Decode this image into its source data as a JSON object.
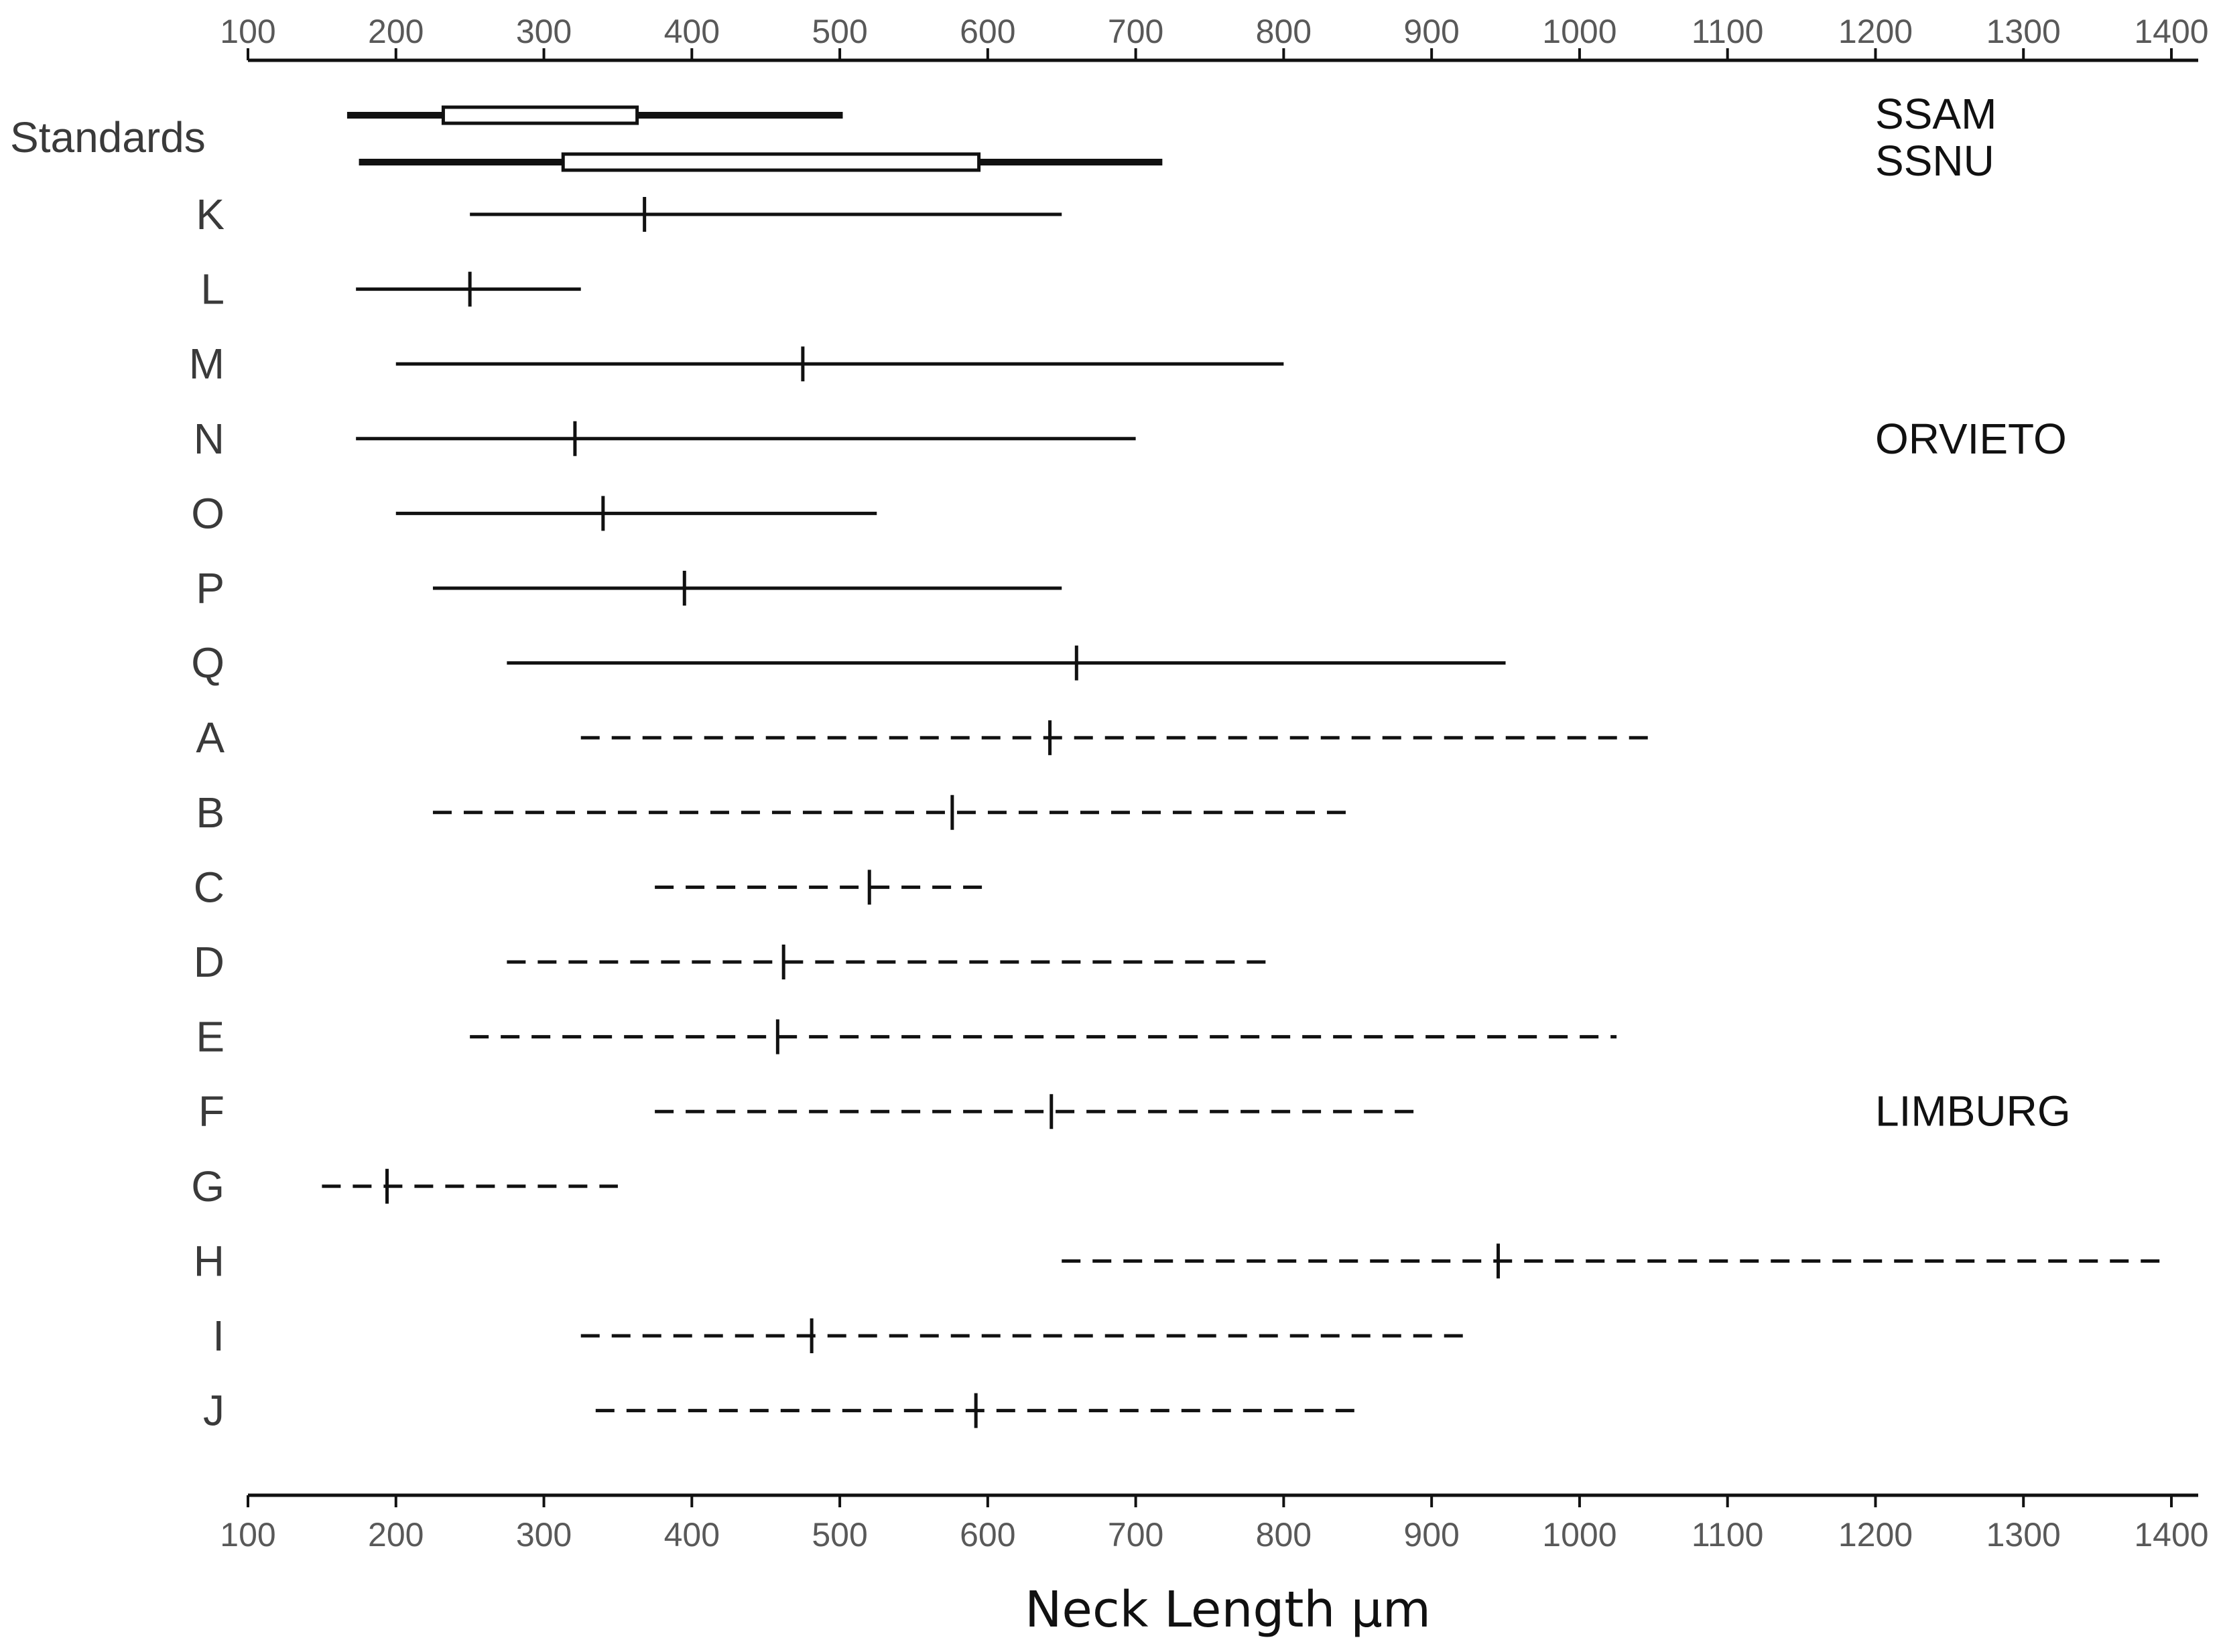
{
  "chart_data": {
    "type": "range",
    "xlabel": "Neck Length μm",
    "xlim": [
      100,
      1400
    ],
    "xticks": [
      100,
      200,
      300,
      400,
      500,
      600,
      700,
      800,
      900,
      1000,
      1100,
      1200,
      1300,
      1400
    ],
    "standards_label": "Standards",
    "standards": [
      {
        "name": "SSAM",
        "min": 167,
        "q1": 232,
        "q3": 363,
        "max": 502
      },
      {
        "name": "SSNU",
        "min": 175,
        "q1": 313,
        "q3": 594,
        "max": 718
      }
    ],
    "groups": [
      {
        "name": "ORVIETO",
        "line_style": "solid",
        "rows": [
          {
            "label": "K",
            "min": 250,
            "mean": 368,
            "max": 650
          },
          {
            "label": "L",
            "min": 173,
            "mean": 250,
            "max": 325
          },
          {
            "label": "M",
            "min": 200,
            "mean": 475,
            "max": 800
          },
          {
            "label": "N",
            "min": 173,
            "mean": 321,
            "max": 700
          },
          {
            "label": "O",
            "min": 200,
            "mean": 340,
            "max": 525
          },
          {
            "label": "P",
            "min": 225,
            "mean": 395,
            "max": 650
          },
          {
            "label": "Q",
            "min": 275,
            "mean": 660,
            "max": 950
          }
        ]
      },
      {
        "name": "LIMBURG",
        "line_style": "dashed",
        "rows": [
          {
            "label": "A",
            "min": 325,
            "mean": 642,
            "max": 1050
          },
          {
            "label": "B",
            "min": 225,
            "mean": 576,
            "max": 850
          },
          {
            "label": "C",
            "min": 375,
            "mean": 520,
            "max": 600
          },
          {
            "label": "D",
            "min": 275,
            "mean": 462,
            "max": 790
          },
          {
            "label": "E",
            "min": 250,
            "mean": 458,
            "max": 1025
          },
          {
            "label": "F",
            "min": 375,
            "mean": 643,
            "max": 890
          },
          {
            "label": "G",
            "min": 150,
            "mean": 194,
            "max": 350
          },
          {
            "label": "H",
            "min": 650,
            "mean": 945,
            "max": 1400
          },
          {
            "label": "I",
            "min": 325,
            "mean": 481,
            "max": 925
          },
          {
            "label": "J",
            "min": 335,
            "mean": 592,
            "max": 850
          }
        ]
      }
    ],
    "colors": {
      "line": "#111111",
      "tick_text": "#595959",
      "row_text": "#3a3a3a"
    }
  }
}
